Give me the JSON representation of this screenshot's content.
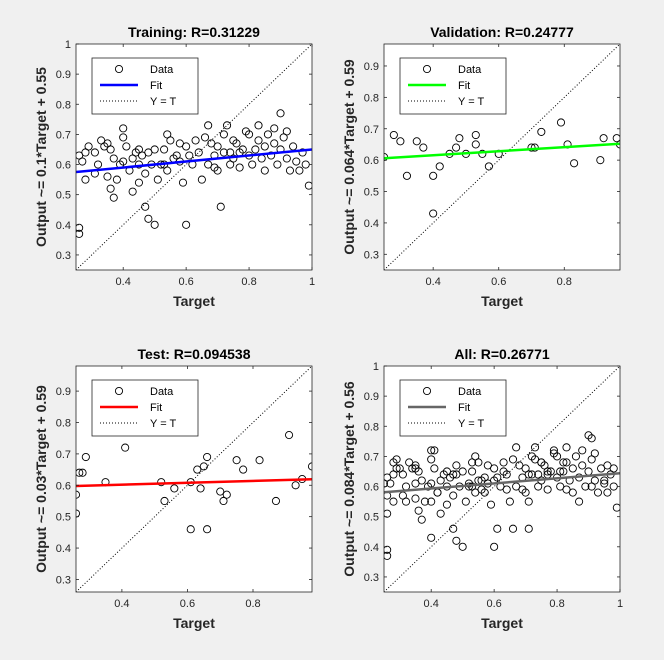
{
  "chart_data": [
    {
      "type": "scatter",
      "title": "Training: R=0.31229",
      "xlabel": "Target",
      "ylabel": "Output ~= 0.1*Target + 0.55",
      "xlim": [
        0.25,
        1.0
      ],
      "ylim": [
        0.25,
        1.0
      ],
      "xticks": [
        "0.4",
        "0.6",
        "0.8",
        "1"
      ],
      "xtick_values": [
        0.4,
        0.6,
        0.8,
        1.0
      ],
      "yticks": [
        "0.3",
        "0.4",
        "0.5",
        "0.6",
        "0.7",
        "0.8",
        "0.9",
        "1"
      ],
      "ytick_values": [
        0.3,
        0.4,
        0.5,
        0.6,
        0.7,
        0.8,
        0.9,
        1.0
      ],
      "fit": {
        "slope": 0.1,
        "intercept": 0.55,
        "color": "#0000ff"
      },
      "identity_line": true,
      "legend": {
        "position": "top-left",
        "entries": [
          "Data",
          "Fit",
          "Y = T"
        ]
      },
      "points": [
        [
          0.26,
          0.39
        ],
        [
          0.26,
          0.37
        ],
        [
          0.26,
          0.63
        ],
        [
          0.27,
          0.61
        ],
        [
          0.28,
          0.64
        ],
        [
          0.28,
          0.55
        ],
        [
          0.29,
          0.66
        ],
        [
          0.31,
          0.57
        ],
        [
          0.32,
          0.6
        ],
        [
          0.33,
          0.68
        ],
        [
          0.34,
          0.66
        ],
        [
          0.35,
          0.67
        ],
        [
          0.35,
          0.56
        ],
        [
          0.36,
          0.52
        ],
        [
          0.36,
          0.65
        ],
        [
          0.37,
          0.49
        ],
        [
          0.38,
          0.55
        ],
        [
          0.39,
          0.6
        ],
        [
          0.4,
          0.72
        ],
        [
          0.4,
          0.69
        ],
        [
          0.4,
          0.61
        ],
        [
          0.41,
          0.66
        ],
        [
          0.42,
          0.58
        ],
        [
          0.43,
          0.51
        ],
        [
          0.43,
          0.62
        ],
        [
          0.44,
          0.64
        ],
        [
          0.45,
          0.6
        ],
        [
          0.45,
          0.54
        ],
        [
          0.46,
          0.63
        ],
        [
          0.47,
          0.46
        ],
        [
          0.47,
          0.57
        ],
        [
          0.48,
          0.64
        ],
        [
          0.48,
          0.42
        ],
        [
          0.49,
          0.6
        ],
        [
          0.5,
          0.65
        ],
        [
          0.5,
          0.4
        ],
        [
          0.51,
          0.55
        ],
        [
          0.52,
          0.6
        ],
        [
          0.53,
          0.65
        ],
        [
          0.54,
          0.7
        ],
        [
          0.54,
          0.58
        ],
        [
          0.55,
          0.68
        ],
        [
          0.56,
          0.62
        ],
        [
          0.57,
          0.63
        ],
        [
          0.58,
          0.67
        ],
        [
          0.59,
          0.54
        ],
        [
          0.6,
          0.66
        ],
        [
          0.6,
          0.4
        ],
        [
          0.61,
          0.63
        ],
        [
          0.62,
          0.6
        ],
        [
          0.63,
          0.68
        ],
        [
          0.64,
          0.64
        ],
        [
          0.65,
          0.55
        ],
        [
          0.66,
          0.69
        ],
        [
          0.67,
          0.73
        ],
        [
          0.67,
          0.6
        ],
        [
          0.68,
          0.67
        ],
        [
          0.69,
          0.63
        ],
        [
          0.7,
          0.58
        ],
        [
          0.7,
          0.66
        ],
        [
          0.71,
          0.46
        ],
        [
          0.72,
          0.7
        ],
        [
          0.72,
          0.64
        ],
        [
          0.73,
          0.73
        ],
        [
          0.74,
          0.6
        ],
        [
          0.75,
          0.68
        ],
        [
          0.75,
          0.62
        ],
        [
          0.76,
          0.67
        ],
        [
          0.77,
          0.59
        ],
        [
          0.78,
          0.65
        ],
        [
          0.79,
          0.71
        ],
        [
          0.8,
          0.63
        ],
        [
          0.8,
          0.7
        ],
        [
          0.81,
          0.6
        ],
        [
          0.82,
          0.65
        ],
        [
          0.83,
          0.68
        ],
        [
          0.84,
          0.62
        ],
        [
          0.85,
          0.66
        ],
        [
          0.85,
          0.58
        ],
        [
          0.86,
          0.7
        ],
        [
          0.87,
          0.63
        ],
        [
          0.88,
          0.67
        ],
        [
          0.89,
          0.6
        ],
        [
          0.9,
          0.77
        ],
        [
          0.9,
          0.65
        ],
        [
          0.91,
          0.69
        ],
        [
          0.92,
          0.62
        ],
        [
          0.93,
          0.58
        ],
        [
          0.94,
          0.66
        ],
        [
          0.95,
          0.61
        ],
        [
          0.96,
          0.58
        ],
        [
          0.97,
          0.64
        ],
        [
          0.98,
          0.6
        ],
        [
          0.99,
          0.53
        ],
        [
          0.92,
          0.71
        ],
        [
          0.88,
          0.72
        ],
        [
          0.83,
          0.73
        ],
        [
          0.74,
          0.64
        ],
        [
          0.58,
          0.61
        ],
        [
          0.53,
          0.6
        ],
        [
          0.45,
          0.65
        ],
        [
          0.37,
          0.62
        ],
        [
          0.31,
          0.64
        ],
        [
          0.69,
          0.59
        ],
        [
          0.77,
          0.64
        ]
      ]
    },
    {
      "type": "scatter",
      "title": "Validation: R=0.24777",
      "xlabel": "Target",
      "ylabel": "Output ~= 0.064*Target + 0.59",
      "xlim": [
        0.25,
        0.97
      ],
      "ylim": [
        0.25,
        0.97
      ],
      "xticks": [
        "0.4",
        "0.6",
        "0.8"
      ],
      "xtick_values": [
        0.4,
        0.6,
        0.8
      ],
      "yticks": [
        "0.3",
        "0.4",
        "0.5",
        "0.6",
        "0.7",
        "0.8",
        "0.9"
      ],
      "ytick_values": [
        0.3,
        0.4,
        0.5,
        0.6,
        0.7,
        0.8,
        0.9
      ],
      "fit": {
        "slope": 0.064,
        "intercept": 0.59,
        "color": "#00ff00"
      },
      "identity_line": true,
      "legend": {
        "position": "top-left",
        "entries": [
          "Data",
          "Fit",
          "Y = T"
        ]
      },
      "points": [
        [
          0.25,
          0.61
        ],
        [
          0.28,
          0.68
        ],
        [
          0.3,
          0.66
        ],
        [
          0.32,
          0.55
        ],
        [
          0.35,
          0.66
        ],
        [
          0.37,
          0.64
        ],
        [
          0.4,
          0.43
        ],
        [
          0.4,
          0.55
        ],
        [
          0.42,
          0.58
        ],
        [
          0.45,
          0.62
        ],
        [
          0.47,
          0.64
        ],
        [
          0.48,
          0.67
        ],
        [
          0.5,
          0.62
        ],
        [
          0.53,
          0.68
        ],
        [
          0.53,
          0.65
        ],
        [
          0.55,
          0.62
        ],
        [
          0.57,
          0.58
        ],
        [
          0.6,
          0.62
        ],
        [
          0.7,
          0.64
        ],
        [
          0.71,
          0.64
        ],
        [
          0.73,
          0.69
        ],
        [
          0.79,
          0.72
        ],
        [
          0.81,
          0.65
        ],
        [
          0.83,
          0.59
        ],
        [
          0.91,
          0.6
        ],
        [
          0.92,
          0.67
        ],
        [
          0.96,
          0.67
        ],
        [
          0.97,
          0.65
        ]
      ]
    },
    {
      "type": "scatter",
      "title": "Test: R=0.094538",
      "xlabel": "Target",
      "ylabel": "Output ~= 0.03*Target + 0.59",
      "xlim": [
        0.26,
        0.98
      ],
      "ylim": [
        0.26,
        0.98
      ],
      "xticks": [
        "0.4",
        "0.6",
        "0.8"
      ],
      "xtick_values": [
        0.4,
        0.6,
        0.8
      ],
      "yticks": [
        "0.3",
        "0.4",
        "0.5",
        "0.6",
        "0.7",
        "0.8",
        "0.9"
      ],
      "ytick_values": [
        0.3,
        0.4,
        0.5,
        0.6,
        0.7,
        0.8,
        0.9
      ],
      "fit": {
        "slope": 0.03,
        "intercept": 0.59,
        "color": "#ff0000"
      },
      "identity_line": true,
      "legend": {
        "position": "top-left",
        "entries": [
          "Data",
          "Fit",
          "Y = T"
        ]
      },
      "points": [
        [
          0.26,
          0.57
        ],
        [
          0.26,
          0.51
        ],
        [
          0.27,
          0.64
        ],
        [
          0.28,
          0.64
        ],
        [
          0.29,
          0.69
        ],
        [
          0.35,
          0.61
        ],
        [
          0.41,
          0.72
        ],
        [
          0.52,
          0.61
        ],
        [
          0.53,
          0.55
        ],
        [
          0.56,
          0.59
        ],
        [
          0.61,
          0.61
        ],
        [
          0.61,
          0.46
        ],
        [
          0.63,
          0.65
        ],
        [
          0.64,
          0.59
        ],
        [
          0.65,
          0.66
        ],
        [
          0.66,
          0.69
        ],
        [
          0.66,
          0.46
        ],
        [
          0.7,
          0.58
        ],
        [
          0.71,
          0.55
        ],
        [
          0.72,
          0.57
        ],
        [
          0.75,
          0.68
        ],
        [
          0.77,
          0.65
        ],
        [
          0.82,
          0.68
        ],
        [
          0.87,
          0.55
        ],
        [
          0.91,
          0.76
        ],
        [
          0.93,
          0.6
        ],
        [
          0.95,
          0.62
        ],
        [
          0.98,
          0.66
        ]
      ]
    },
    {
      "type": "scatter",
      "title": "All: R=0.26771",
      "xlabel": "Target",
      "ylabel": "Output ~= 0.084*Target + 0.56",
      "xlim": [
        0.25,
        1.0
      ],
      "ylim": [
        0.25,
        1.0
      ],
      "xticks": [
        "0.4",
        "0.6",
        "0.8",
        "1"
      ],
      "xtick_values": [
        0.4,
        0.6,
        0.8,
        1.0
      ],
      "yticks": [
        "0.3",
        "0.4",
        "0.5",
        "0.6",
        "0.7",
        "0.8",
        "0.9",
        "1"
      ],
      "ytick_values": [
        0.3,
        0.4,
        0.5,
        0.6,
        0.7,
        0.8,
        0.9,
        1.0
      ],
      "fit": {
        "slope": 0.084,
        "intercept": 0.56,
        "color": "#666666"
      },
      "identity_line": true,
      "legend": {
        "position": "top-left",
        "entries": [
          "Data",
          "Fit",
          "Y = T"
        ]
      },
      "points": [
        [
          0.26,
          0.39
        ],
        [
          0.26,
          0.37
        ],
        [
          0.26,
          0.63
        ],
        [
          0.27,
          0.61
        ],
        [
          0.28,
          0.64
        ],
        [
          0.28,
          0.55
        ],
        [
          0.29,
          0.66
        ],
        [
          0.31,
          0.57
        ],
        [
          0.32,
          0.6
        ],
        [
          0.33,
          0.68
        ],
        [
          0.34,
          0.66
        ],
        [
          0.35,
          0.67
        ],
        [
          0.35,
          0.56
        ],
        [
          0.36,
          0.52
        ],
        [
          0.36,
          0.65
        ],
        [
          0.37,
          0.49
        ],
        [
          0.38,
          0.55
        ],
        [
          0.39,
          0.6
        ],
        [
          0.4,
          0.72
        ],
        [
          0.4,
          0.69
        ],
        [
          0.4,
          0.61
        ],
        [
          0.41,
          0.66
        ],
        [
          0.42,
          0.58
        ],
        [
          0.43,
          0.51
        ],
        [
          0.43,
          0.62
        ],
        [
          0.44,
          0.64
        ],
        [
          0.45,
          0.6
        ],
        [
          0.45,
          0.54
        ],
        [
          0.46,
          0.63
        ],
        [
          0.47,
          0.46
        ],
        [
          0.47,
          0.57
        ],
        [
          0.48,
          0.64
        ],
        [
          0.48,
          0.42
        ],
        [
          0.49,
          0.6
        ],
        [
          0.5,
          0.65
        ],
        [
          0.5,
          0.4
        ],
        [
          0.51,
          0.55
        ],
        [
          0.52,
          0.6
        ],
        [
          0.53,
          0.65
        ],
        [
          0.54,
          0.7
        ],
        [
          0.54,
          0.58
        ],
        [
          0.55,
          0.68
        ],
        [
          0.56,
          0.62
        ],
        [
          0.57,
          0.63
        ],
        [
          0.58,
          0.67
        ],
        [
          0.59,
          0.54
        ],
        [
          0.6,
          0.66
        ],
        [
          0.6,
          0.4
        ],
        [
          0.61,
          0.63
        ],
        [
          0.62,
          0.6
        ],
        [
          0.63,
          0.68
        ],
        [
          0.64,
          0.64
        ],
        [
          0.65,
          0.55
        ],
        [
          0.66,
          0.69
        ],
        [
          0.67,
          0.73
        ],
        [
          0.67,
          0.6
        ],
        [
          0.68,
          0.67
        ],
        [
          0.69,
          0.63
        ],
        [
          0.7,
          0.58
        ],
        [
          0.7,
          0.66
        ],
        [
          0.71,
          0.46
        ],
        [
          0.72,
          0.7
        ],
        [
          0.72,
          0.64
        ],
        [
          0.73,
          0.73
        ],
        [
          0.74,
          0.6
        ],
        [
          0.75,
          0.68
        ],
        [
          0.75,
          0.62
        ],
        [
          0.76,
          0.67
        ],
        [
          0.77,
          0.59
        ],
        [
          0.78,
          0.65
        ],
        [
          0.79,
          0.71
        ],
        [
          0.8,
          0.63
        ],
        [
          0.8,
          0.7
        ],
        [
          0.81,
          0.6
        ],
        [
          0.82,
          0.65
        ],
        [
          0.83,
          0.68
        ],
        [
          0.84,
          0.62
        ],
        [
          0.85,
          0.66
        ],
        [
          0.85,
          0.58
        ],
        [
          0.86,
          0.7
        ],
        [
          0.87,
          0.63
        ],
        [
          0.88,
          0.67
        ],
        [
          0.89,
          0.6
        ],
        [
          0.9,
          0.77
        ],
        [
          0.9,
          0.65
        ],
        [
          0.91,
          0.69
        ],
        [
          0.92,
          0.62
        ],
        [
          0.93,
          0.58
        ],
        [
          0.94,
          0.66
        ],
        [
          0.95,
          0.61
        ],
        [
          0.96,
          0.58
        ],
        [
          0.97,
          0.64
        ],
        [
          0.98,
          0.6
        ],
        [
          0.99,
          0.53
        ],
        [
          0.92,
          0.71
        ],
        [
          0.88,
          0.72
        ],
        [
          0.83,
          0.73
        ],
        [
          0.74,
          0.64
        ],
        [
          0.58,
          0.61
        ],
        [
          0.53,
          0.6
        ],
        [
          0.45,
          0.65
        ],
        [
          0.37,
          0.62
        ],
        [
          0.31,
          0.64
        ],
        [
          0.69,
          0.59
        ],
        [
          0.77,
          0.64
        ],
        [
          0.25,
          0.61
        ],
        [
          0.28,
          0.68
        ],
        [
          0.3,
          0.66
        ],
        [
          0.32,
          0.55
        ],
        [
          0.35,
          0.66
        ],
        [
          0.4,
          0.43
        ],
        [
          0.4,
          0.55
        ],
        [
          0.42,
          0.58
        ],
        [
          0.47,
          0.64
        ],
        [
          0.48,
          0.67
        ],
        [
          0.53,
          0.68
        ],
        [
          0.55,
          0.62
        ],
        [
          0.57,
          0.58
        ],
        [
          0.6,
          0.62
        ],
        [
          0.71,
          0.64
        ],
        [
          0.73,
          0.69
        ],
        [
          0.79,
          0.72
        ],
        [
          0.81,
          0.65
        ],
        [
          0.83,
          0.59
        ],
        [
          0.91,
          0.6
        ],
        [
          0.96,
          0.67
        ],
        [
          0.26,
          0.57
        ],
        [
          0.26,
          0.51
        ],
        [
          0.29,
          0.69
        ],
        [
          0.35,
          0.61
        ],
        [
          0.41,
          0.72
        ],
        [
          0.52,
          0.61
        ],
        [
          0.56,
          0.59
        ],
        [
          0.61,
          0.46
        ],
        [
          0.63,
          0.65
        ],
        [
          0.64,
          0.59
        ],
        [
          0.66,
          0.46
        ],
        [
          0.71,
          0.55
        ],
        [
          0.75,
          0.68
        ],
        [
          0.77,
          0.65
        ],
        [
          0.82,
          0.68
        ],
        [
          0.87,
          0.55
        ],
        [
          0.91,
          0.76
        ],
        [
          0.95,
          0.62
        ],
        [
          0.98,
          0.66
        ]
      ]
    }
  ]
}
